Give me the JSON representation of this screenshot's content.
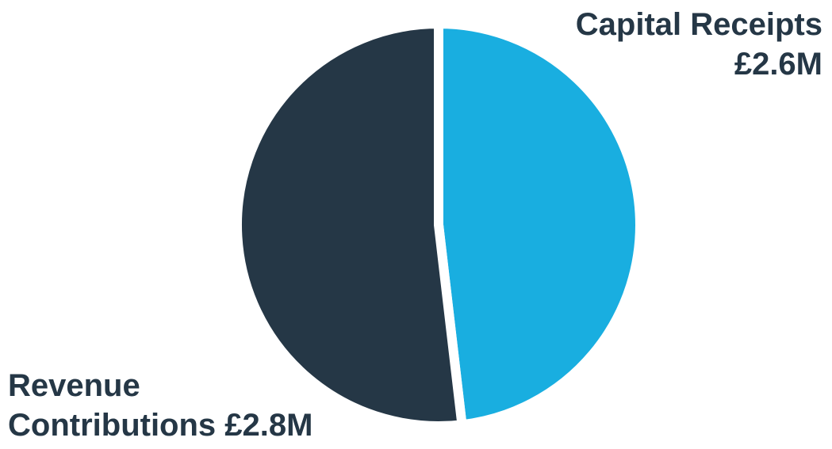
{
  "chart_data": {
    "type": "pie",
    "slices": [
      {
        "name": "Capital Receipts",
        "value": 2.6,
        "label_line1": "Capital Receipts",
        "label_line2": "£2.6M",
        "color": "#19AEE0"
      },
      {
        "name": "Revenue Contributions",
        "value": 2.8,
        "label_line1": "Revenue",
        "label_line2": "Contributions £2.8M",
        "color": "#253746"
      }
    ],
    "unit": "£M",
    "start": "12 o'clock",
    "direction": "clockwise"
  },
  "colors": {
    "label_text": "#253746",
    "background": "#FFFFFF",
    "slice_gap": "#FFFFFF"
  }
}
